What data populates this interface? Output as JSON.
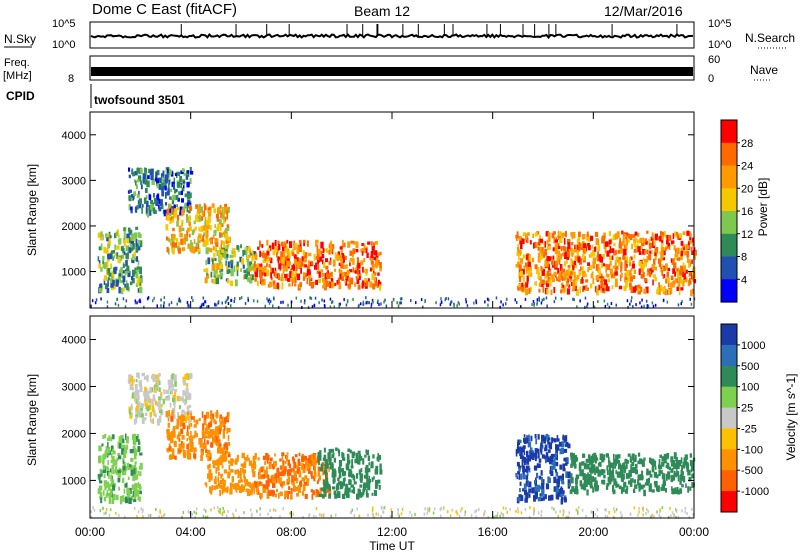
{
  "header": {
    "station": "Dome C East (fitACF)",
    "beam": "Beam 12",
    "date": "12/Mar/2016"
  },
  "strip": {
    "nsky_label": "N.Sky",
    "nsky_top": "10^5",
    "nsky_bottom": "10^0",
    "nsearch_top": "10^5",
    "nsearch_bottom": "10^0",
    "nsearch_label": "N.Search",
    "freq_label": "Freq.",
    "freq_unit": "[MHz]",
    "freq_top": "",
    "freq_bottom": "8",
    "nave_top": "60",
    "nave_bottom": "0",
    "nave_label": "Nave",
    "cpid_label": "CPID",
    "cpid_value": "twofsound 3501"
  },
  "x_axis": {
    "label": "Time UT",
    "ticks": [
      "00:00",
      "04:00",
      "08:00",
      "12:00",
      "16:00",
      "20:00",
      "00:00"
    ]
  },
  "colors": {
    "power": [
      "#0000ff",
      "#2050b0",
      "#2e8b57",
      "#7ec850",
      "#f5c800",
      "#ff9a00",
      "#ff6a00",
      "#ff0000"
    ],
    "velocity": [
      "#1a3aa8",
      "#2a6fb8",
      "#2e8b57",
      "#7ed050",
      "#c8c8c8",
      "#ffc000",
      "#ff9000",
      "#ff6000",
      "#ff0000"
    ]
  },
  "chart_data": [
    {
      "type": "heatmap",
      "title": "",
      "xlabel": "",
      "ylabel": "Slant Range [km]",
      "xlim": [
        0,
        24
      ],
      "ylim": [
        200,
        4500
      ],
      "y_ticks": [
        "1000",
        "2000",
        "3000",
        "4000"
      ],
      "colorbar": {
        "label": "Power [dB]",
        "ticks": [
          "4",
          "8",
          "12",
          "16",
          "20",
          "24",
          "28"
        ],
        "range": [
          0,
          32
        ]
      },
      "regions": [
        {
          "x": [
            0.3,
            2.0
          ],
          "y": [
            600,
            2000
          ],
          "value": 12
        },
        {
          "x": [
            1.5,
            4.0
          ],
          "y": [
            2300,
            3300
          ],
          "value": 8
        },
        {
          "x": [
            3.0,
            5.5
          ],
          "y": [
            1500,
            2500
          ],
          "value": 20
        },
        {
          "x": [
            4.5,
            6.5
          ],
          "y": [
            800,
            1600
          ],
          "value": 14
        },
        {
          "x": [
            6.5,
            11.5
          ],
          "y": [
            700,
            1700
          ],
          "value": 26
        },
        {
          "x": [
            16.9,
            24.0
          ],
          "y": [
            600,
            1900
          ],
          "value": 24
        }
      ]
    },
    {
      "type": "heatmap",
      "title": "",
      "xlabel": "Time UT",
      "ylabel": "Slant Range [km]",
      "xlim": [
        0,
        24
      ],
      "ylim": [
        200,
        4500
      ],
      "y_ticks": [
        "1000",
        "2000",
        "3000",
        "4000"
      ],
      "colorbar": {
        "label": "Velocity [m s^-1]",
        "ticks": [
          "1000",
          "500",
          "100",
          "25",
          "-25",
          "-100",
          "-500",
          "-1000"
        ],
        "range": [
          -1000,
          1000
        ]
      },
      "regions": [
        {
          "x": [
            0.3,
            2.0
          ],
          "y": [
            600,
            2000
          ],
          "value": 50
        },
        {
          "x": [
            1.5,
            4.0
          ],
          "y": [
            2300,
            3300
          ],
          "value": 0
        },
        {
          "x": [
            3.0,
            5.5
          ],
          "y": [
            1500,
            2500
          ],
          "value": -200
        },
        {
          "x": [
            4.5,
            6.5
          ],
          "y": [
            800,
            1600
          ],
          "value": -150
        },
        {
          "x": [
            6.5,
            9.5
          ],
          "y": [
            700,
            1600
          ],
          "value": -250
        },
        {
          "x": [
            9.0,
            11.5
          ],
          "y": [
            700,
            1700
          ],
          "value": 150
        },
        {
          "x": [
            16.9,
            19.0
          ],
          "y": [
            600,
            2000
          ],
          "value": 700
        },
        {
          "x": [
            19.0,
            24.0
          ],
          "y": [
            800,
            1600
          ],
          "value": 120
        }
      ]
    }
  ]
}
